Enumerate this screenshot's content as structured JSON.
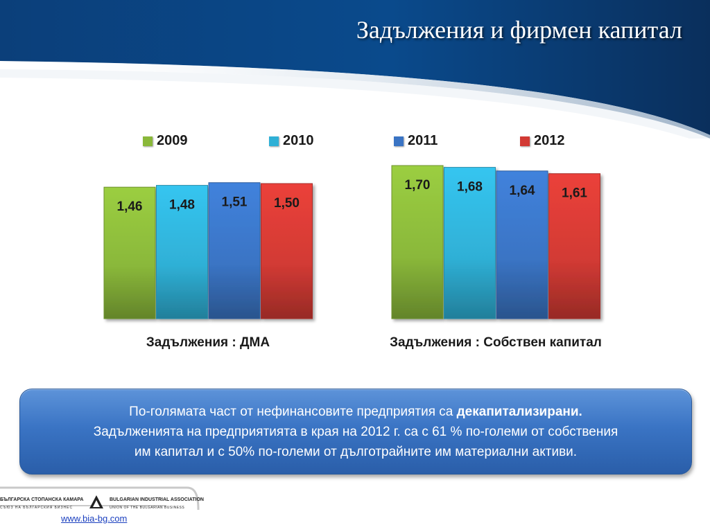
{
  "header": {
    "title": "Задължения и фирмен капитал"
  },
  "chart_data": {
    "type": "bar",
    "legend": {
      "placement": "top",
      "entries": [
        "2009",
        "2010",
        "2011",
        "2012"
      ]
    },
    "series": [
      {
        "name": "2009",
        "color": "#8ab83a",
        "values": [
          1.46,
          1.7
        ],
        "labels": [
          "1,46",
          "1,70"
        ]
      },
      {
        "name": "2010",
        "color": "#2fb0d6",
        "values": [
          1.48,
          1.68
        ],
        "labels": [
          "1,48",
          "1,68"
        ]
      },
      {
        "name": "2011",
        "color": "#3a74c4",
        "values": [
          1.51,
          1.64
        ],
        "labels": [
          "1,51",
          "1,64"
        ]
      },
      {
        "name": "2012",
        "color": "#d23a34",
        "values": [
          1.5,
          1.61
        ],
        "labels": [
          "1,50",
          "1,61"
        ]
      }
    ],
    "categories": [
      "Задължения : ДМА",
      "Задължения : Собствен капитал"
    ],
    "ylim": [
      0,
      1.75
    ],
    "grid": false
  },
  "note": {
    "line1_prefix": "По-голямата част от нефинансовите предприятия са ",
    "line1_bold": "декапитализирани.",
    "line2": "Задълженията  на предприятията в края на 2012 г. са с 61 % по-големи от собствения",
    "line3": "им капитал и с 50% по-големи от дълготрайните им материални активи."
  },
  "footer": {
    "logo_bg": "БЪЛГАРСКА СТОПАНСКА КАМАРА",
    "logo_en": "BULGARIAN INDUSTRIAL ASSOCIATION",
    "logo_bg_sub": "СЪЮЗ НА БЪЛГАРСКИЯ БИЗНЕС",
    "logo_en_sub": "UNION OF THE BULGARIAN BUSINESS",
    "link": "www.bia-bg.com"
  }
}
